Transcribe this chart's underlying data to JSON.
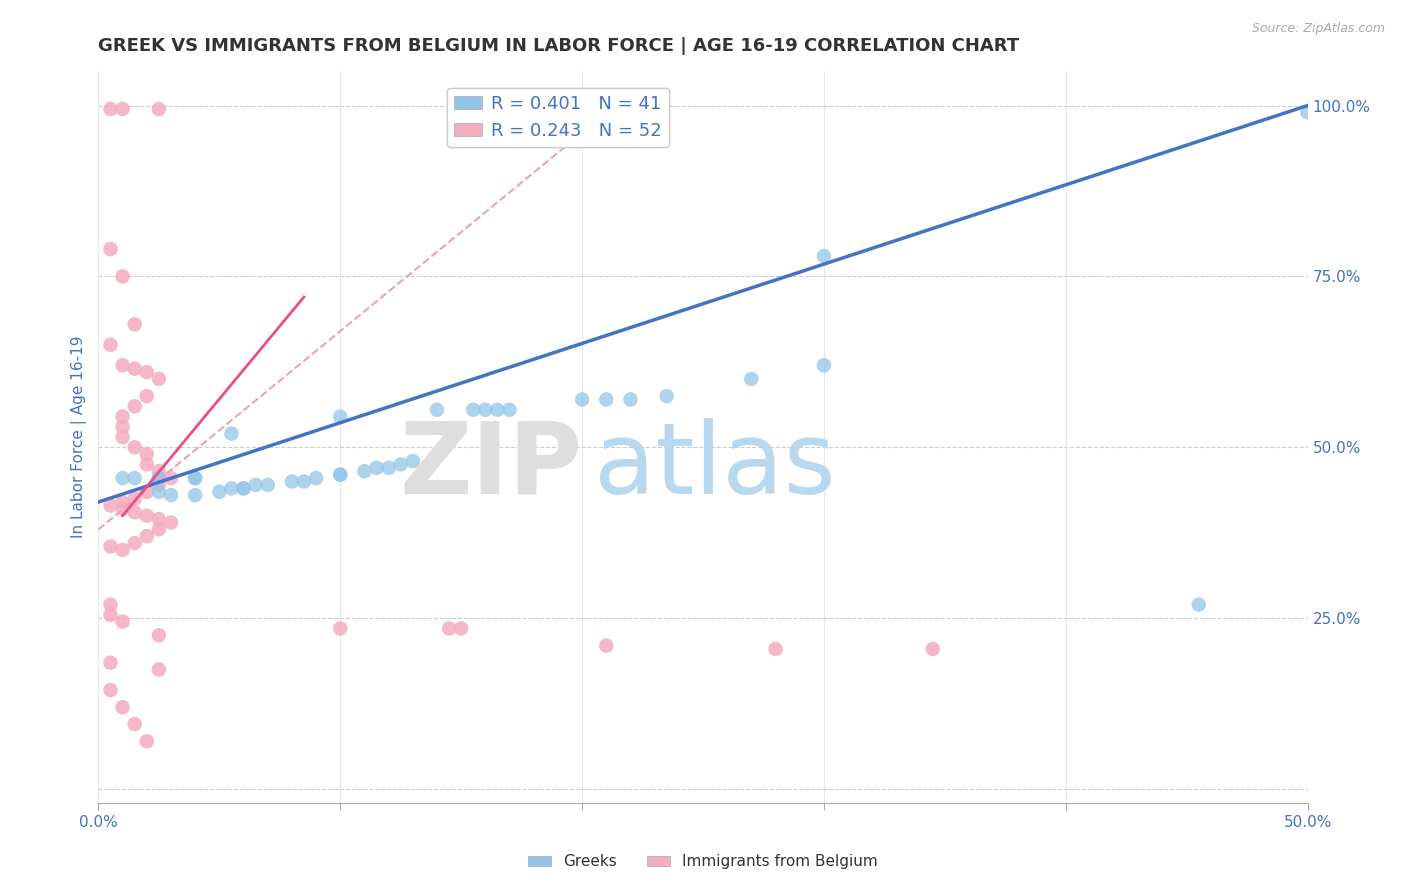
{
  "title": "GREEK VS IMMIGRANTS FROM BELGIUM IN LABOR FORCE | AGE 16-19 CORRELATION CHART",
  "source": "Source: ZipAtlas.com",
  "ylabel": "In Labor Force | Age 16-19",
  "xlim": [
    0.0,
    0.5
  ],
  "ylim": [
    -0.02,
    1.05
  ],
  "xticks": [
    0.0,
    0.1,
    0.2,
    0.3,
    0.4,
    0.5
  ],
  "xticklabels": [
    "0.0%",
    "",
    "",
    "",
    "",
    "50.0%"
  ],
  "yticks_right": [
    0.25,
    0.5,
    0.75,
    1.0
  ],
  "yticklabels_right": [
    "25.0%",
    "50.0%",
    "75.0%",
    "100.0%"
  ],
  "legend_blue_label": "R = 0.401   N = 41",
  "legend_pink_label": "R = 0.243   N = 52",
  "legend_blue_label2": "Greeks",
  "legend_pink_label2": "Immigrants from Belgium",
  "blue_color": "#93C5E8",
  "pink_color": "#F4ACBF",
  "blue_line_color": "#4472C4",
  "title_fontsize": 13,
  "blue_scatter": [
    [
      0.01,
      0.455
    ],
    [
      0.015,
      0.455
    ],
    [
      0.025,
      0.455
    ],
    [
      0.025,
      0.455
    ],
    [
      0.04,
      0.455
    ],
    [
      0.04,
      0.455
    ],
    [
      0.025,
      0.435
    ],
    [
      0.03,
      0.43
    ],
    [
      0.04,
      0.43
    ],
    [
      0.05,
      0.435
    ],
    [
      0.055,
      0.44
    ],
    [
      0.06,
      0.44
    ],
    [
      0.06,
      0.44
    ],
    [
      0.065,
      0.445
    ],
    [
      0.07,
      0.445
    ],
    [
      0.08,
      0.45
    ],
    [
      0.085,
      0.45
    ],
    [
      0.09,
      0.455
    ],
    [
      0.1,
      0.46
    ],
    [
      0.1,
      0.46
    ],
    [
      0.11,
      0.465
    ],
    [
      0.115,
      0.47
    ],
    [
      0.12,
      0.47
    ],
    [
      0.125,
      0.475
    ],
    [
      0.13,
      0.48
    ],
    [
      0.055,
      0.52
    ],
    [
      0.1,
      0.545
    ],
    [
      0.14,
      0.555
    ],
    [
      0.155,
      0.555
    ],
    [
      0.16,
      0.555
    ],
    [
      0.165,
      0.555
    ],
    [
      0.17,
      0.555
    ],
    [
      0.2,
      0.57
    ],
    [
      0.21,
      0.57
    ],
    [
      0.22,
      0.57
    ],
    [
      0.235,
      0.575
    ],
    [
      0.27,
      0.6
    ],
    [
      0.3,
      0.62
    ],
    [
      0.3,
      0.78
    ],
    [
      0.455,
      0.27
    ],
    [
      0.5,
      0.99
    ]
  ],
  "pink_scatter": [
    [
      0.005,
      0.995
    ],
    [
      0.01,
      0.995
    ],
    [
      0.025,
      0.995
    ],
    [
      0.005,
      0.79
    ],
    [
      0.01,
      0.75
    ],
    [
      0.015,
      0.68
    ],
    [
      0.005,
      0.65
    ],
    [
      0.01,
      0.62
    ],
    [
      0.015,
      0.615
    ],
    [
      0.02,
      0.61
    ],
    [
      0.025,
      0.6
    ],
    [
      0.02,
      0.575
    ],
    [
      0.015,
      0.56
    ],
    [
      0.01,
      0.545
    ],
    [
      0.01,
      0.53
    ],
    [
      0.01,
      0.515
    ],
    [
      0.015,
      0.5
    ],
    [
      0.02,
      0.49
    ],
    [
      0.02,
      0.475
    ],
    [
      0.025,
      0.465
    ],
    [
      0.03,
      0.455
    ],
    [
      0.025,
      0.445
    ],
    [
      0.02,
      0.435
    ],
    [
      0.015,
      0.425
    ],
    [
      0.01,
      0.42
    ],
    [
      0.005,
      0.415
    ],
    [
      0.01,
      0.41
    ],
    [
      0.015,
      0.405
    ],
    [
      0.02,
      0.4
    ],
    [
      0.025,
      0.395
    ],
    [
      0.03,
      0.39
    ],
    [
      0.025,
      0.38
    ],
    [
      0.02,
      0.37
    ],
    [
      0.015,
      0.36
    ],
    [
      0.005,
      0.355
    ],
    [
      0.01,
      0.35
    ],
    [
      0.005,
      0.27
    ],
    [
      0.005,
      0.255
    ],
    [
      0.01,
      0.245
    ],
    [
      0.025,
      0.225
    ],
    [
      0.005,
      0.185
    ],
    [
      0.025,
      0.175
    ],
    [
      0.005,
      0.145
    ],
    [
      0.01,
      0.12
    ],
    [
      0.015,
      0.095
    ],
    [
      0.02,
      0.07
    ],
    [
      0.1,
      0.235
    ],
    [
      0.145,
      0.235
    ],
    [
      0.15,
      0.235
    ],
    [
      0.21,
      0.21
    ],
    [
      0.28,
      0.205
    ],
    [
      0.345,
      0.205
    ]
  ],
  "blue_trend": [
    0.0,
    0.42,
    0.5,
    1.0
  ],
  "pink_trend_solid": [
    0.01,
    0.4,
    0.085,
    0.72
  ],
  "pink_trend_dashed": [
    0.0,
    0.38,
    0.2,
    0.96
  ]
}
